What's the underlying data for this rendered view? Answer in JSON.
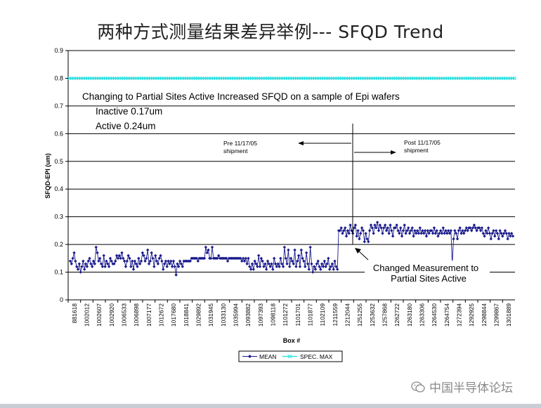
{
  "slide": {
    "title": "两种方式测量结果差异举例--- SFQD Trend",
    "watermark": "中国半导体论坛"
  },
  "colors": {
    "mean": "#1a1a8c",
    "spec_max": "#33e0e0",
    "grid": "#000000"
  },
  "chart_data": {
    "type": "line",
    "ylabel": "SFQD-EPI (um)",
    "xlabel": "Box #",
    "ylim": [
      0,
      0.9
    ],
    "yticks": [
      0,
      0.1,
      0.2,
      0.3,
      0.4,
      0.5,
      0.6,
      0.7,
      0.8,
      0.9
    ],
    "grid": true,
    "legend_position": "bottom-center",
    "x_tick_labels": [
      "881618",
      "1002012",
      "1002607",
      "1002920",
      "1006533",
      "1006898",
      "1007177",
      "1012672",
      "1017680",
      "1018841",
      "1029892",
      "1031945",
      "1033130",
      "1035994",
      "1093882",
      "1097393",
      "1098118",
      "1101272",
      "1101701",
      "1101877",
      "1102109",
      "1211559",
      "1212044",
      "1251255",
      "1253632",
      "1257868",
      "1262722",
      "1263180",
      "1263306",
      "1264530",
      "1264754",
      "1272394",
      "1292925",
      "1298844",
      "1299867",
      "1301889"
    ],
    "annotations": {
      "header": "Changing to Partial Sites Active Increased SFQD on a sample of Epi wafers",
      "inactive": "Inactive  0.17um",
      "active": "Active   0.24um",
      "pre_label": "Pre 11/17/05",
      "pre_sub": "shipment",
      "post_label": "Post 11/17/05",
      "post_sub": "shipment",
      "changed_line1": "Changed Measurement to",
      "changed_line2": "Partial Sites Active"
    },
    "series": [
      {
        "name": "MEAN",
        "values": [
          0.14,
          0.13,
          0.15,
          0.17,
          0.14,
          0.12,
          0.11,
          0.13,
          0.1,
          0.12,
          0.14,
          0.11,
          0.13,
          0.12,
          0.14,
          0.15,
          0.13,
          0.12,
          0.14,
          0.13,
          0.19,
          0.17,
          0.14,
          0.15,
          0.13,
          0.12,
          0.16,
          0.12,
          0.14,
          0.13,
          0.12,
          0.15,
          0.14,
          0.13,
          0.13,
          0.14,
          0.16,
          0.15,
          0.16,
          0.15,
          0.17,
          0.15,
          0.14,
          0.12,
          0.14,
          0.16,
          0.15,
          0.12,
          0.14,
          0.11,
          0.14,
          0.13,
          0.12,
          0.15,
          0.13,
          0.14,
          0.17,
          0.16,
          0.14,
          0.15,
          0.18,
          0.13,
          0.14,
          0.17,
          0.15,
          0.12,
          0.16,
          0.14,
          0.13,
          0.15,
          0.16,
          0.14,
          0.11,
          0.13,
          0.14,
          0.12,
          0.14,
          0.13,
          0.14,
          0.12,
          0.14,
          0.12,
          0.09,
          0.13,
          0.12,
          0.14,
          0.13,
          0.12,
          0.14,
          0.14,
          0.14,
          0.14,
          0.14,
          0.14,
          0.15,
          0.15,
          0.15,
          0.15,
          0.15,
          0.14,
          0.15,
          0.15,
          0.15,
          0.15,
          0.15,
          0.19,
          0.17,
          0.18,
          0.15,
          0.15,
          0.19,
          0.15,
          0.15,
          0.15,
          0.15,
          0.16,
          0.15,
          0.15,
          0.15,
          0.15,
          0.15,
          0.15,
          0.14,
          0.15,
          0.15,
          0.15,
          0.15,
          0.15,
          0.15,
          0.15,
          0.15,
          0.15,
          0.15,
          0.14,
          0.15,
          0.14,
          0.15,
          0.13,
          0.15,
          0.12,
          0.11,
          0.13,
          0.11,
          0.14,
          0.13,
          0.12,
          0.16,
          0.12,
          0.15,
          0.14,
          0.12,
          0.13,
          0.11,
          0.14,
          0.13,
          0.12,
          0.13,
          0.11,
          0.15,
          0.13,
          0.12,
          0.13,
          0.12,
          0.15,
          0.13,
          0.12,
          0.19,
          0.15,
          0.13,
          0.18,
          0.12,
          0.15,
          0.14,
          0.13,
          0.18,
          0.12,
          0.14,
          0.16,
          0.12,
          0.18,
          0.15,
          0.14,
          0.12,
          0.17,
          0.13,
          0.11,
          0.19,
          0.13,
          0.1,
          0.12,
          0.11,
          0.13,
          0.14,
          0.12,
          0.11,
          0.13,
          0.12,
          0.14,
          0.12,
          0.13,
          0.15,
          0.11,
          0.12,
          0.13,
          0.11,
          0.14,
          0.12,
          0.11,
          0.25,
          0.25,
          0.26,
          0.24,
          0.25,
          0.26,
          0.23,
          0.25,
          0.24,
          0.27,
          0.25,
          0.24,
          0.26,
          0.27,
          0.23,
          0.25,
          0.22,
          0.24,
          0.26,
          0.25,
          0.21,
          0.24,
          0.22,
          0.21,
          0.25,
          0.27,
          0.26,
          0.24,
          0.27,
          0.26,
          0.28,
          0.25,
          0.27,
          0.26,
          0.24,
          0.26,
          0.27,
          0.25,
          0.26,
          0.24,
          0.27,
          0.25,
          0.23,
          0.26,
          0.26,
          0.27,
          0.25,
          0.24,
          0.26,
          0.23,
          0.25,
          0.27,
          0.24,
          0.25,
          0.26,
          0.24,
          0.25,
          0.26,
          0.23,
          0.25,
          0.24,
          0.25,
          0.24,
          0.26,
          0.24,
          0.25,
          0.24,
          0.25,
          0.23,
          0.25,
          0.24,
          0.25,
          0.25,
          0.24,
          0.26,
          0.24,
          0.25,
          0.23,
          0.24,
          0.25,
          0.24,
          0.26,
          0.24,
          0.25,
          0.24,
          0.25,
          0.24,
          0.25,
          0.13,
          0.22,
          0.25,
          0.24,
          0.22,
          0.25,
          0.26,
          0.24,
          0.25,
          0.24,
          0.25,
          0.26,
          0.25,
          0.26,
          0.26,
          0.25,
          0.26,
          0.27,
          0.26,
          0.25,
          0.26,
          0.26,
          0.25,
          0.26,
          0.24,
          0.23,
          0.25,
          0.24,
          0.26,
          0.24,
          0.22,
          0.24,
          0.25,
          0.23,
          0.25,
          0.24,
          0.22,
          0.25,
          0.24,
          0.23,
          0.24,
          0.25,
          0.24,
          0.22,
          0.24,
          0.23,
          0.24,
          0.23
        ]
      },
      {
        "name": "SPEC. MAX",
        "value": 0.8
      }
    ]
  }
}
